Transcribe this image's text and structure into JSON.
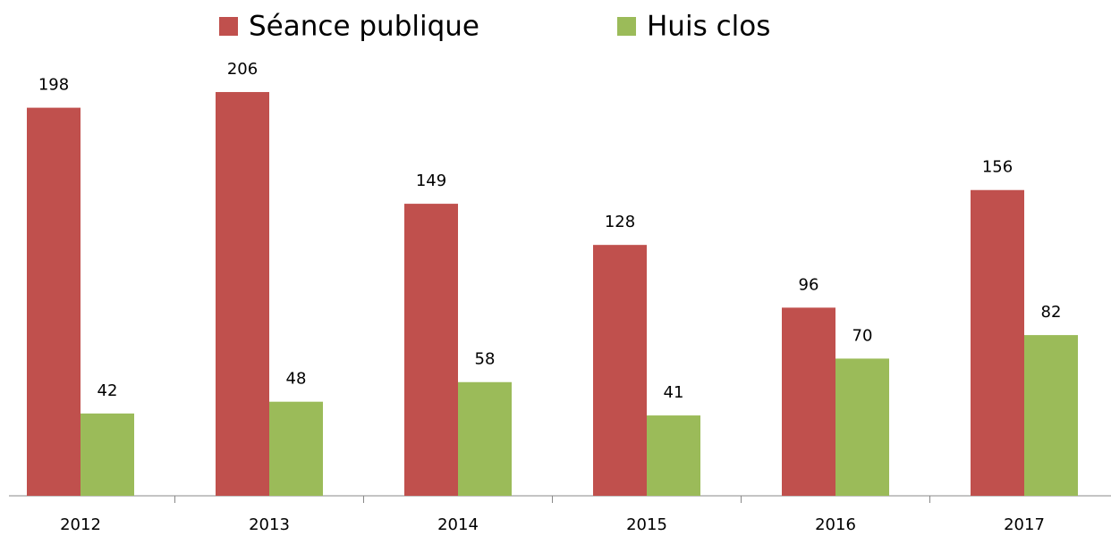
{
  "chart_data": {
    "type": "bar",
    "categories": [
      "2012",
      "2013",
      "2014",
      "2015",
      "2016",
      "2017"
    ],
    "series": [
      {
        "name": "Séance publique",
        "color": "#c0504d",
        "values": [
          198,
          206,
          149,
          128,
          96,
          156
        ]
      },
      {
        "name": "Huis clos",
        "color": "#9bbb59",
        "values": [
          42,
          48,
          58,
          41,
          70,
          82
        ]
      }
    ],
    "legend": "top"
  }
}
